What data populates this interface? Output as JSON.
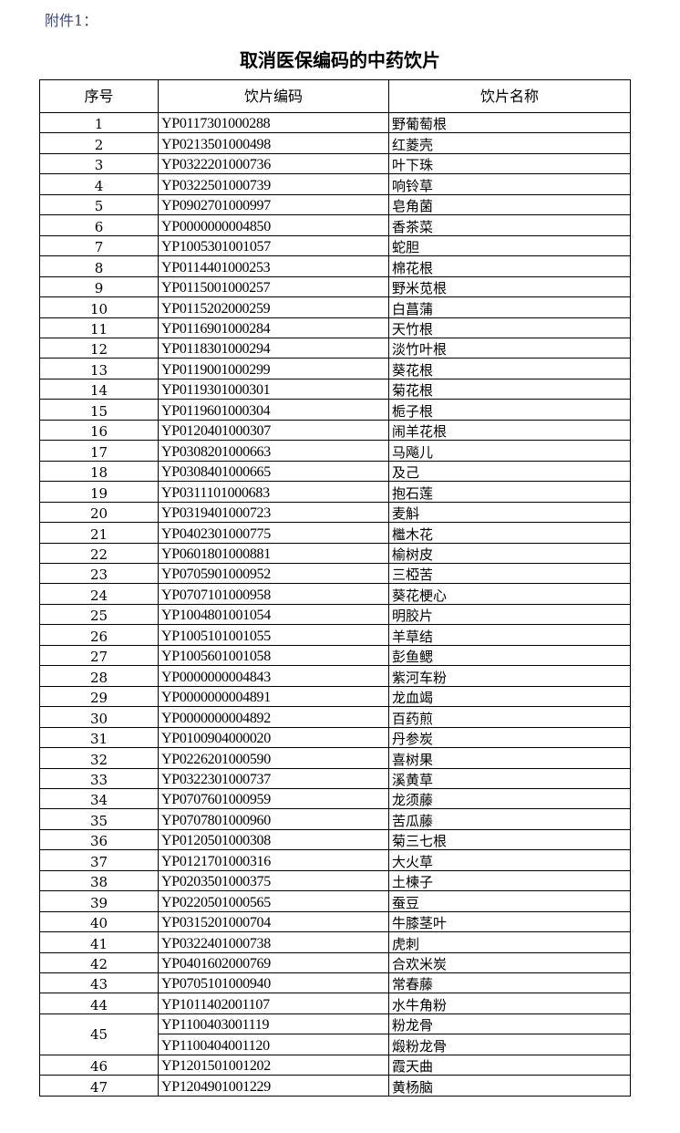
{
  "attachment_label": "附件1：",
  "title": "取消医保编码的中药饮片",
  "table": {
    "headers": [
      "序号",
      "饮片编码",
      "饮片名称"
    ],
    "rows": [
      {
        "no": "1",
        "items": [
          {
            "code": "YP0117301000288",
            "name": "野葡萄根"
          }
        ]
      },
      {
        "no": "2",
        "items": [
          {
            "code": "YP0213501000498",
            "name": "红菱壳"
          }
        ]
      },
      {
        "no": "3",
        "items": [
          {
            "code": "YP0322201000736",
            "name": "叶下珠"
          }
        ]
      },
      {
        "no": "4",
        "items": [
          {
            "code": "YP0322501000739",
            "name": "响铃草"
          }
        ]
      },
      {
        "no": "5",
        "items": [
          {
            "code": "YP0902701000997",
            "name": "皂角菌"
          }
        ]
      },
      {
        "no": "6",
        "items": [
          {
            "code": "YP0000000004850",
            "name": "香茶菜"
          }
        ]
      },
      {
        "no": "7",
        "items": [
          {
            "code": "YP1005301001057",
            "name": "蛇胆"
          }
        ]
      },
      {
        "no": "8",
        "items": [
          {
            "code": "YP0114401000253",
            "name": "棉花根"
          }
        ]
      },
      {
        "no": "9",
        "items": [
          {
            "code": "YP0115001000257",
            "name": "野米苋根"
          }
        ]
      },
      {
        "no": "10",
        "items": [
          {
            "code": "YP0115202000259",
            "name": "白菖蒲"
          }
        ]
      },
      {
        "no": "11",
        "items": [
          {
            "code": "YP0116901000284",
            "name": "天竹根"
          }
        ]
      },
      {
        "no": "12",
        "items": [
          {
            "code": "YP0118301000294",
            "name": "淡竹叶根"
          }
        ]
      },
      {
        "no": "13",
        "items": [
          {
            "code": "YP0119001000299",
            "name": "葵花根"
          }
        ]
      },
      {
        "no": "14",
        "items": [
          {
            "code": "YP0119301000301",
            "name": "菊花根"
          }
        ]
      },
      {
        "no": "15",
        "items": [
          {
            "code": "YP0119601000304",
            "name": "栀子根"
          }
        ]
      },
      {
        "no": "16",
        "items": [
          {
            "code": "YP0120401000307",
            "name": "闹羊花根"
          }
        ]
      },
      {
        "no": "17",
        "items": [
          {
            "code": "YP0308201000663",
            "name": "马飚儿"
          }
        ]
      },
      {
        "no": "18",
        "items": [
          {
            "code": "YP0308401000665",
            "name": "及己"
          }
        ]
      },
      {
        "no": "19",
        "items": [
          {
            "code": "YP0311101000683",
            "name": "抱石莲"
          }
        ]
      },
      {
        "no": "20",
        "items": [
          {
            "code": "YP0319401000723",
            "name": "麦斛"
          }
        ]
      },
      {
        "no": "21",
        "items": [
          {
            "code": "YP0402301000775",
            "name": "檵木花"
          }
        ]
      },
      {
        "no": "22",
        "items": [
          {
            "code": "YP0601801000881",
            "name": "榆树皮"
          }
        ]
      },
      {
        "no": "23",
        "items": [
          {
            "code": "YP0705901000952",
            "name": "三椏苦"
          }
        ]
      },
      {
        "no": "24",
        "items": [
          {
            "code": "YP0707101000958",
            "name": "葵花梗心"
          }
        ]
      },
      {
        "no": "25",
        "items": [
          {
            "code": "YP1004801001054",
            "name": "明胶片"
          }
        ]
      },
      {
        "no": "26",
        "items": [
          {
            "code": "YP1005101001055",
            "name": "羊草结"
          }
        ]
      },
      {
        "no": "27",
        "items": [
          {
            "code": "YP1005601001058",
            "name": "彭鱼鳃"
          }
        ]
      },
      {
        "no": "28",
        "items": [
          {
            "code": "YP0000000004843",
            "name": "紫河车粉"
          }
        ]
      },
      {
        "no": "29",
        "items": [
          {
            "code": "YP0000000004891",
            "name": "龙血竭"
          }
        ]
      },
      {
        "no": "30",
        "items": [
          {
            "code": "YP0000000004892",
            "name": "百药煎"
          }
        ]
      },
      {
        "no": "31",
        "items": [
          {
            "code": "YP0100904000020",
            "name": "丹参炭"
          }
        ]
      },
      {
        "no": "32",
        "items": [
          {
            "code": "YP0226201000590",
            "name": "喜树果"
          }
        ]
      },
      {
        "no": "33",
        "items": [
          {
            "code": "YP0322301000737",
            "name": "溪黄草"
          }
        ]
      },
      {
        "no": "34",
        "items": [
          {
            "code": "YP0707601000959",
            "name": "龙须藤"
          }
        ]
      },
      {
        "no": "35",
        "items": [
          {
            "code": "YP0707801000960",
            "name": "苦瓜藤"
          }
        ]
      },
      {
        "no": "36",
        "items": [
          {
            "code": "YP0120501000308",
            "name": "菊三七根"
          }
        ]
      },
      {
        "no": "37",
        "items": [
          {
            "code": "YP0121701000316",
            "name": "大火草"
          }
        ]
      },
      {
        "no": "38",
        "items": [
          {
            "code": "YP0203501000375",
            "name": "土楝子"
          }
        ]
      },
      {
        "no": "39",
        "items": [
          {
            "code": "YP0220501000565",
            "name": "蚕豆"
          }
        ]
      },
      {
        "no": "40",
        "items": [
          {
            "code": "YP0315201000704",
            "name": "牛膝茎叶"
          }
        ]
      },
      {
        "no": "41",
        "items": [
          {
            "code": "YP0322401000738",
            "name": "虎刺"
          }
        ]
      },
      {
        "no": "42",
        "items": [
          {
            "code": "YP0401602000769",
            "name": "合欢米炭"
          }
        ]
      },
      {
        "no": "43",
        "items": [
          {
            "code": "YP0705101000940",
            "name": "常春藤"
          }
        ]
      },
      {
        "no": "44",
        "items": [
          {
            "code": "YP1011402001107",
            "name": "水牛角粉"
          }
        ]
      },
      {
        "no": "45",
        "items": [
          {
            "code": "YP1100403001119",
            "name": "粉龙骨"
          },
          {
            "code": "YP1100404001120",
            "name": "煅粉龙骨"
          }
        ]
      },
      {
        "no": "46",
        "items": [
          {
            "code": "YP1201501001202",
            "name": "霞天曲"
          }
        ]
      },
      {
        "no": "47",
        "items": [
          {
            "code": "YP1204901001229",
            "name": "黄杨脑"
          }
        ]
      }
    ]
  }
}
